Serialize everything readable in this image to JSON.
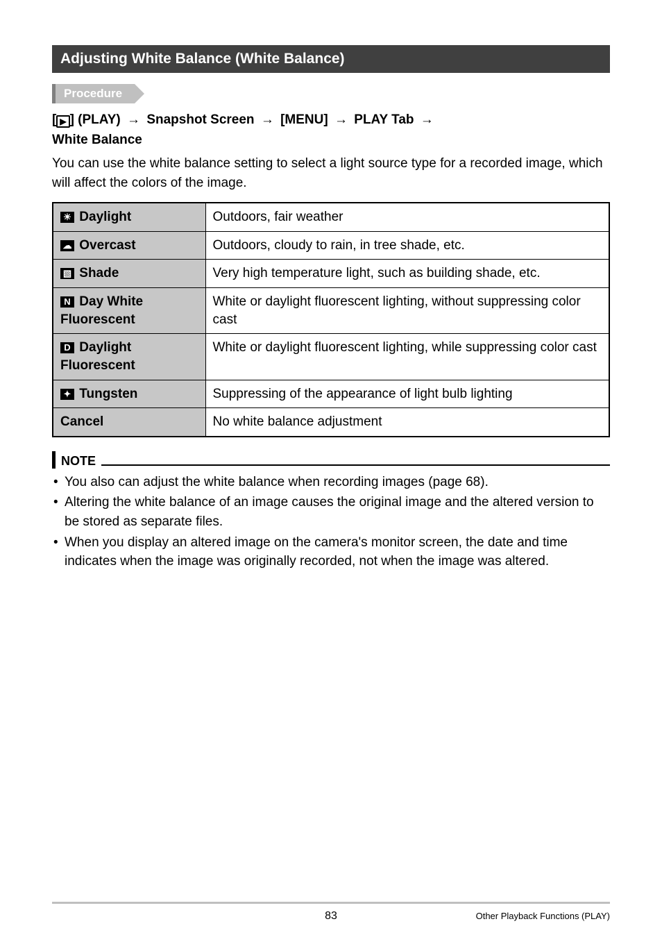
{
  "header": {
    "title": "Adjusting White Balance (White Balance)"
  },
  "procedure": {
    "label": "Procedure"
  },
  "breadcrumb": {
    "prefix": "[",
    "play_glyph": "▶",
    "suffix": "]",
    "play": "(PLAY)",
    "step2": "Snapshot Screen",
    "step3": "[MENU]",
    "step4": "PLAY Tab",
    "step5": "White Balance",
    "arrow": "→"
  },
  "intro": "You can use the white balance setting to select a light source type for a recorded image, which will affect the colors of the image.",
  "table": {
    "rows": [
      {
        "icon": "☀",
        "label": "Daylight",
        "desc": "Outdoors, fair weather"
      },
      {
        "icon": "☁",
        "label": "Overcast",
        "desc": "Outdoors, cloudy to rain, in tree shade, etc."
      },
      {
        "icon": "▧",
        "label": "Shade",
        "desc": "Very high temperature light, such as building shade, etc."
      },
      {
        "icon": "N",
        "label": "Day White Fluorescent",
        "desc": "White or daylight fluorescent lighting, without suppressing color cast"
      },
      {
        "icon": "D",
        "label": "Daylight Fluorescent",
        "desc": "White or daylight fluorescent lighting, while suppressing color cast"
      },
      {
        "icon": "✦",
        "label": "Tungsten",
        "desc": "Suppressing of the appearance of light bulb lighting"
      },
      {
        "icon": "",
        "label": "Cancel",
        "desc": "No white balance adjustment"
      }
    ]
  },
  "note": {
    "heading": "NOTE",
    "items": [
      "You also can adjust the white balance when recording images (page 68).",
      "Altering the white balance of an image causes the original image and the altered version to be stored as separate files.",
      "When you display an altered image on the camera's monitor screen, the date and time indicates when the image was originally recorded, not when the image was altered."
    ]
  },
  "footer": {
    "page": "83",
    "section": "Other Playback Functions (PLAY)"
  }
}
